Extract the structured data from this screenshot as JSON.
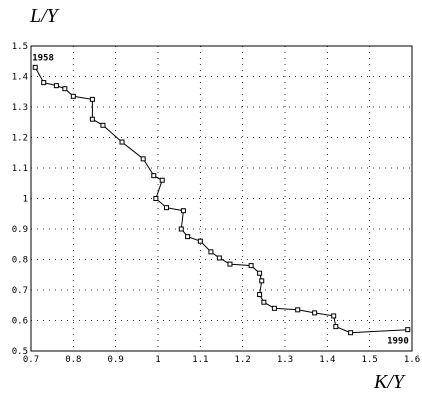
{
  "chart_data": {
    "type": "line",
    "xlabel": "K/Y",
    "ylabel": "L/Y",
    "xlim": [
      0.7,
      1.6
    ],
    "ylim": [
      0.5,
      1.5
    ],
    "xticks": [
      "0.7",
      "0.8",
      "0.9",
      "1",
      "1.1",
      "1.2",
      "1.3",
      "1.4",
      "1.5",
      "1.6"
    ],
    "yticks": [
      "0.5",
      "0.6",
      "0.7",
      "0.8",
      "0.9",
      "1",
      "1.1",
      "1.2",
      "1.3",
      "1.4",
      "1.5"
    ],
    "grid": true,
    "annotations": [
      {
        "text": "1958",
        "x": 0.71,
        "y": 1.43
      },
      {
        "text": "1990",
        "x": 1.59,
        "y": 0.57
      }
    ],
    "series": [
      {
        "x": [
          0.71,
          0.73,
          0.76,
          0.78,
          0.8,
          0.845,
          0.845,
          0.87,
          0.915,
          0.965,
          0.99,
          1.01,
          0.995,
          1.02,
          1.06,
          1.055,
          1.07,
          1.1,
          1.125,
          1.145,
          1.17,
          1.22,
          1.24,
          1.245,
          1.24,
          1.25,
          1.275,
          1.33,
          1.37,
          1.415,
          1.42,
          1.455,
          1.59
        ],
        "y": [
          1.43,
          1.38,
          1.37,
          1.36,
          1.335,
          1.325,
          1.26,
          1.24,
          1.185,
          1.13,
          1.075,
          1.06,
          1.0,
          0.97,
          0.96,
          0.9,
          0.875,
          0.86,
          0.825,
          0.805,
          0.785,
          0.78,
          0.755,
          0.73,
          0.685,
          0.66,
          0.64,
          0.635,
          0.625,
          0.615,
          0.58,
          0.56,
          0.57
        ]
      }
    ]
  }
}
